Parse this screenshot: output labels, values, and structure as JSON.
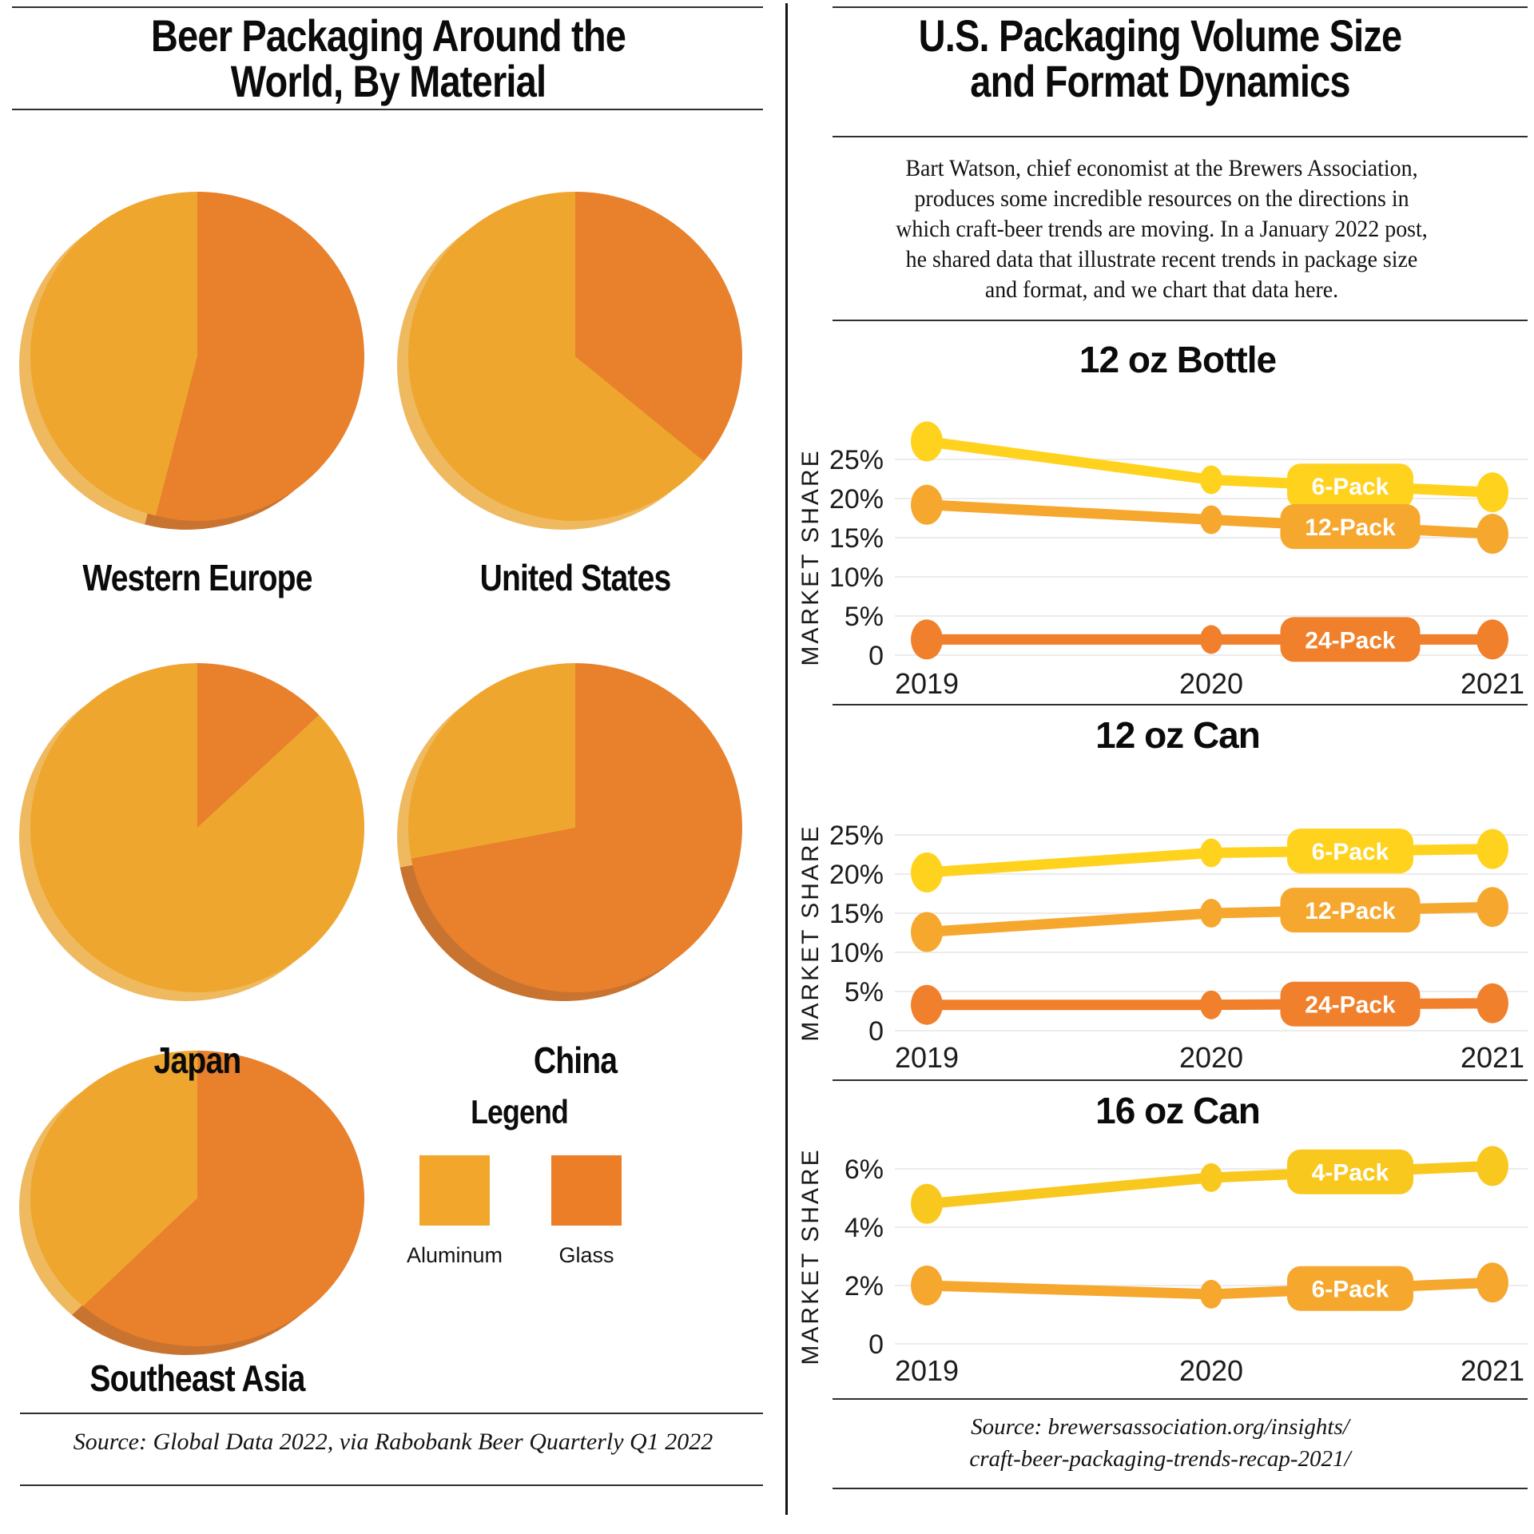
{
  "left_panel": {
    "title_line1": "Beer Packaging Around the",
    "title_line2": "World, By Material",
    "legend": {
      "title": "Legend",
      "items": [
        {
          "label": "Aluminum",
          "color": "#F2A72C"
        },
        {
          "label": "Glass",
          "color": "#EC7E28"
        }
      ]
    },
    "source": "Source: Global Data 2022, via Rabobank Beer Quarterly Q1 2022"
  },
  "right_panel": {
    "title_line1": "U.S. Packaging Volume Size",
    "title_line2": "and Format Dynamics",
    "intro_lines": [
      "Bart Watson, chief economist at the Brewers Association,",
      "produces some incredible resources on the directions in",
      "which craft-beer trends are moving. In a January 2022 post,",
      "he shared data that illustrate recent trends in package size",
      "and format, and we chart that data here."
    ],
    "source_line1": "Source: brewersassociation.org/insights/",
    "source_line2": "craft-beer-packaging-trends-recap-2021/"
  },
  "chart_data": [
    {
      "type": "pie",
      "title": "Western Europe",
      "labels": [
        "Aluminum",
        "Glass"
      ],
      "values": [
        46,
        54
      ],
      "colors": [
        "#EFA62E",
        "#E8802C"
      ],
      "side_colors": [
        "#EFB960",
        "#C87430"
      ]
    },
    {
      "type": "pie",
      "title": "United States",
      "labels": [
        "Aluminum",
        "Glass"
      ],
      "values": [
        64,
        36
      ],
      "colors": [
        "#EFA62E",
        "#E8802C"
      ],
      "side_colors": [
        "#EFB960",
        "#C87430"
      ]
    },
    {
      "type": "pie",
      "title": "Japan",
      "labels": [
        "Aluminum",
        "Glass"
      ],
      "values": [
        87,
        13
      ],
      "colors": [
        "#EFA62E",
        "#E8802C"
      ],
      "side_colors": [
        "#EFB960",
        "#C87430"
      ]
    },
    {
      "type": "pie",
      "title": "China",
      "labels": [
        "Aluminum",
        "Glass"
      ],
      "values": [
        28,
        72
      ],
      "colors": [
        "#EFA62E",
        "#E8802C"
      ],
      "side_colors": [
        "#EFB960",
        "#C87430"
      ]
    },
    {
      "type": "pie",
      "title": "Southeast Asia",
      "labels": [
        "Aluminum",
        "Glass"
      ],
      "values": [
        38,
        62
      ],
      "colors": [
        "#EFA62E",
        "#E8802C"
      ],
      "side_colors": [
        "#EFB960",
        "#C87430"
      ]
    },
    {
      "type": "line",
      "title": "12 oz Bottle",
      "ylabel": "MARKET SHARE",
      "x": [
        "2019",
        "2020",
        "2021"
      ],
      "ylim": [
        0,
        37
      ],
      "grid": true,
      "yticks": [
        {
          "value": 25,
          "label": "25%"
        },
        {
          "value": 20,
          "label": "20%"
        },
        {
          "value": 15,
          "label": "15%"
        },
        {
          "value": 10,
          "label": "10%"
        },
        {
          "value": 5,
          "label": "5%"
        },
        {
          "value": 0,
          "label": "0"
        }
      ],
      "series": [
        {
          "name": "6-Pack",
          "color": "#FFD21E",
          "values": [
            27.3,
            22.4,
            20.8
          ]
        },
        {
          "name": "12-Pack",
          "color": "#F6A72E",
          "values": [
            19.2,
            17.3,
            15.5
          ]
        },
        {
          "name": "24-Pack",
          "color": "#F0802B",
          "values": [
            2.0,
            2.0,
            2.0
          ]
        }
      ],
      "legend_position": "pill-labels-on-lines"
    },
    {
      "type": "line",
      "title": "12 oz Can",
      "ylabel": "MARKET SHARE",
      "x": [
        "2019",
        "2020",
        "2021"
      ],
      "ylim": [
        0,
        37
      ],
      "grid": true,
      "yticks": [
        {
          "value": 25,
          "label": "25%"
        },
        {
          "value": 20,
          "label": "20%"
        },
        {
          "value": 15,
          "label": "15%"
        },
        {
          "value": 10,
          "label": "10%"
        },
        {
          "value": 5,
          "label": "5%"
        },
        {
          "value": 0,
          "label": "0"
        }
      ],
      "series": [
        {
          "name": "6-Pack",
          "color": "#FFD21E",
          "values": [
            20.2,
            22.7,
            23.2
          ]
        },
        {
          "name": "12-Pack",
          "color": "#F6A72E",
          "values": [
            12.6,
            15.0,
            15.8
          ]
        },
        {
          "name": "24-Pack",
          "color": "#F0802B",
          "values": [
            3.3,
            3.3,
            3.5
          ]
        }
      ],
      "legend_position": "pill-labels-on-lines"
    },
    {
      "type": "line",
      "title": "16 oz Can",
      "ylabel": "MARKET SHARE",
      "x": [
        "2019",
        "2020",
        "2021"
      ],
      "ylim": [
        0,
        8
      ],
      "grid": true,
      "yticks": [
        {
          "value": 6,
          "label": "6%"
        },
        {
          "value": 4,
          "label": "4%"
        },
        {
          "value": 2,
          "label": "2%"
        },
        {
          "value": 0,
          "label": "0"
        }
      ],
      "series": [
        {
          "name": "4-Pack",
          "color": "#F9C81E",
          "values": [
            4.8,
            5.7,
            6.1
          ]
        },
        {
          "name": "6-Pack",
          "color": "#F6A72E",
          "values": [
            2.0,
            1.7,
            2.1
          ]
        }
      ],
      "legend_position": "pill-labels-on-lines"
    }
  ]
}
